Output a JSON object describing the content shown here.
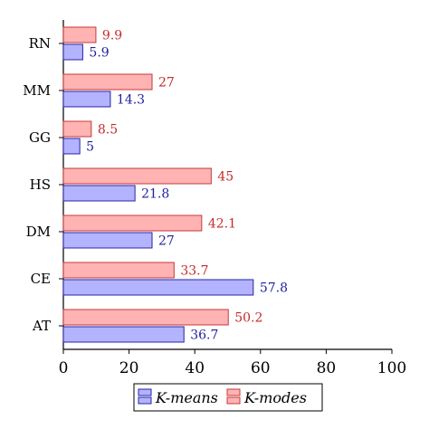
{
  "chart_data": {
    "type": "bar",
    "orientation": "horizontal",
    "categories": [
      "RN",
      "MM",
      "GG",
      "HS",
      "DM",
      "CE",
      "AT"
    ],
    "series": [
      {
        "name": "K-means",
        "values": [
          5.9,
          14.3,
          5,
          21.8,
          27,
          57.8,
          36.7
        ],
        "labels": [
          "5.9",
          "14.3",
          "5",
          "21.8",
          "27",
          "57.8",
          "36.7"
        ],
        "fill": "#b3b3ff",
        "stroke": "#2424a8",
        "label_color": "#1f1fa0"
      },
      {
        "name": "K-modes",
        "values": [
          9.9,
          27,
          8.5,
          45,
          42.1,
          33.7,
          50.2
        ],
        "labels": [
          "9.9",
          "27",
          "8.5",
          "45",
          "42.1",
          "33.7",
          "50.2"
        ],
        "fill": "#ffb3b3",
        "stroke": "#c43a3a",
        "label_color": "#c42a2a"
      }
    ],
    "xlim": [
      0,
      100
    ],
    "xticks": [
      "0",
      "20",
      "40",
      "60",
      "80",
      "100"
    ],
    "xlabel": "",
    "ylabel": "",
    "title": "",
    "grid": false,
    "legend": {
      "position": "bottom-center",
      "entries": [
        "K-means",
        "K-modes"
      ]
    }
  }
}
